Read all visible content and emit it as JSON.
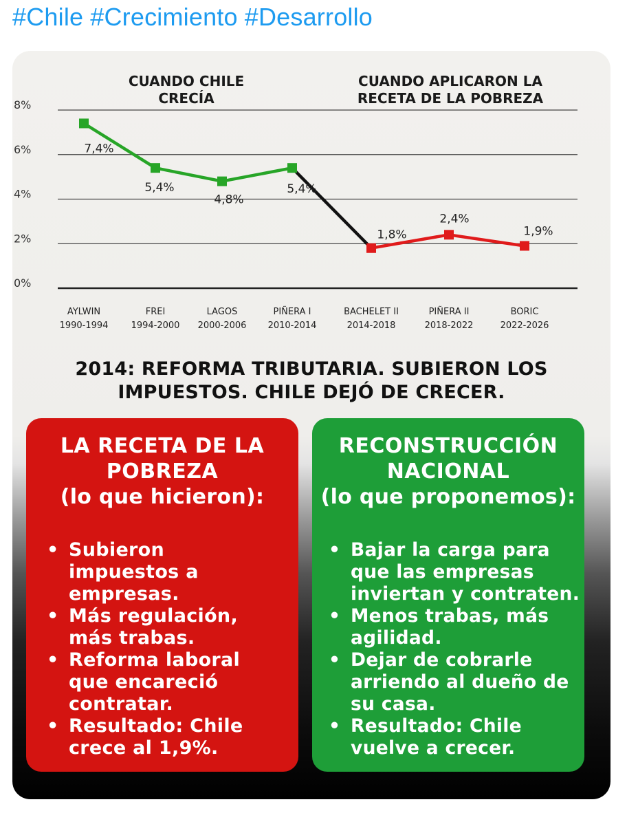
{
  "hashtags": [
    "#Chile",
    "#Crecimiento",
    "#Desarrollo"
  ],
  "chart_data": {
    "type": "line",
    "section_labels": [
      {
        "lines": [
          "CUANDO CHILE",
          "CRECÍA"
        ]
      },
      {
        "lines": [
          "CUANDO APLICARON LA",
          "RECETA DE LA POBREZA"
        ]
      }
    ],
    "categories": [
      {
        "name": "AYLWIN",
        "period": "1990-1994"
      },
      {
        "name": "FREI",
        "period": "1994-2000"
      },
      {
        "name": "LAGOS",
        "period": "2000-2006"
      },
      {
        "name": "PIÑERA I",
        "period": "2010-2014"
      },
      {
        "name": "BACHELET II",
        "period": "2014-2018"
      },
      {
        "name": "PIÑERA II",
        "period": "2018-2022"
      },
      {
        "name": "BORIC",
        "period": "2022-2026"
      }
    ],
    "values": [
      7.4,
      5.4,
      4.8,
      5.4,
      1.8,
      2.4,
      1.9
    ],
    "data_labels": [
      "7,4%",
      "5,4%",
      "4,8%",
      "5,4%",
      "1,8%",
      "2,4%",
      "1,9%"
    ],
    "y_ticks": [
      {
        "value": 0,
        "label": "0%"
      },
      {
        "value": 2,
        "label": "2%"
      },
      {
        "value": 4,
        "label": "4%"
      },
      {
        "value": 6,
        "label": "6%"
      },
      {
        "value": 8,
        "label": "8%"
      }
    ],
    "ylim": [
      0,
      8
    ],
    "grid": true,
    "segment_colors": {
      "growth": "#27a527",
      "transition": "#111111",
      "decline": "#e01b1b"
    },
    "segments": [
      {
        "from": 0,
        "to": 3,
        "color_key": "growth"
      },
      {
        "from": 3,
        "to": 4,
        "color_key": "transition"
      },
      {
        "from": 4,
        "to": 6,
        "color_key": "decline"
      }
    ]
  },
  "headline": [
    "2014: REFORMA TRIBUTARIA. SUBIERON LOS",
    "IMPUESTOS. CHILE DEJÓ DE CRECER."
  ],
  "panels": {
    "left": {
      "title": [
        "LA RECETA DE LA",
        "POBREZA"
      ],
      "subtitle": "(lo que hicieron):",
      "items": [
        "Subieron\nimpuestos a\nempresas.",
        "Más regulación,\nmás trabas.",
        "Reforma laboral\nque encareció\ncontratar.",
        "Resultado: Chile\ncrece al 1,9%."
      ],
      "color": "#d41411"
    },
    "right": {
      "title": [
        "RECONSTRUCCIÓN",
        "NACIONAL"
      ],
      "subtitle": "(lo que proponemos):",
      "items": [
        "Bajar la carga para\nque las empresas\ninviertan y contraten.",
        "Menos trabas, más\nagilidad.",
        "Dejar de cobrarle\narriendo al dueño de\nsu casa.",
        "Resultado: Chile\nvuelve a crecer."
      ],
      "color": "#1e9e38"
    }
  }
}
